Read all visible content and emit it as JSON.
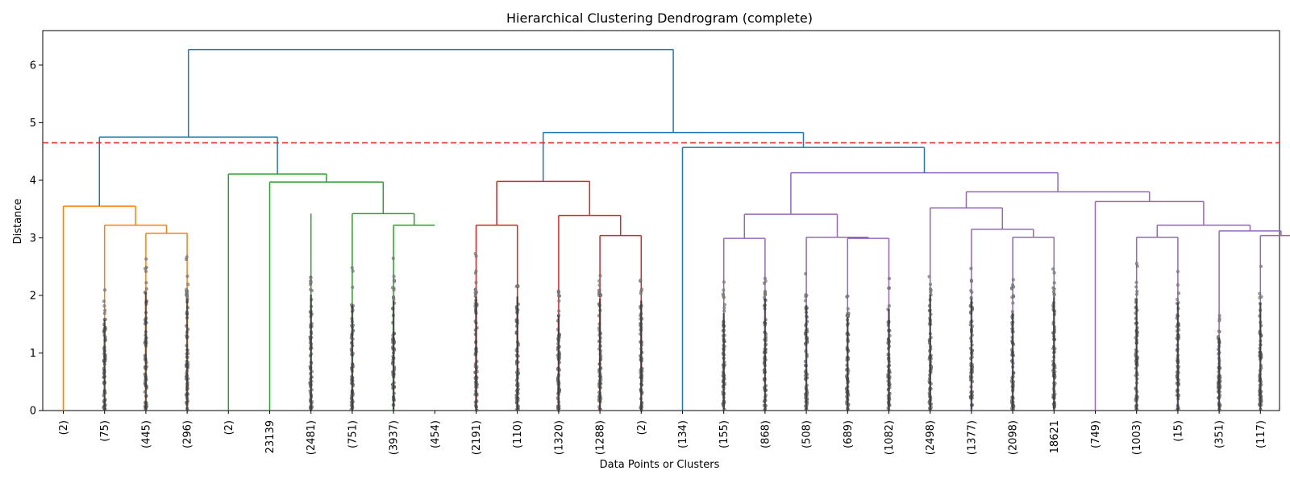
{
  "chart_data": {
    "type": "dendrogram",
    "title": "Hierarchical Clustering Dendrogram (complete)",
    "xlabel": "Data Points or Clusters",
    "ylabel": "Distance",
    "ylim": [
      0,
      6.6
    ],
    "yticks": [
      0,
      1,
      2,
      3,
      4,
      5,
      6
    ],
    "leaf_labels": [
      "(2)",
      "(75)",
      "(445)",
      "(296)",
      "(2)",
      "23139",
      "(2481)",
      "(751)",
      "(3937)",
      "(454)",
      "(2191)",
      "(110)",
      "(1320)",
      "(1288)",
      "(2)",
      "(134)",
      "(155)",
      "(868)",
      "(508)",
      "(689)",
      "(1082)",
      "(2498)",
      "(1377)",
      "(2098)",
      "18621",
      "(749)",
      "(1003)",
      "(15)",
      "(351)",
      "(117)"
    ],
    "cut_threshold": 4.65,
    "colors": {
      "orange": "#ff7f0e",
      "green": "#2ca02c",
      "red": "#d62728",
      "purple": "#9467bd",
      "blue": "#1f77b4",
      "threshold": "#e8261b"
    },
    "merges": [
      {
        "left": 1,
        "right": 2,
        "lx": 4.0,
        "rx": 6.0,
        "height": 3.08,
        "color": "orange"
      },
      {
        "left": 0,
        "right": 2,
        "lx": 2.0,
        "rx": 5.0,
        "height": 3.22,
        "color": "orange"
      },
      {
        "left": 0,
        "right": 1,
        "lx": 0.0,
        "rx": 3.5,
        "height": 3.55,
        "color": "orange"
      },
      {
        "left": 0,
        "right": 2,
        "lx": 16.0,
        "rx": 18.0,
        "height": 3.22,
        "color": "green"
      },
      {
        "left": 0,
        "right": 2,
        "lx": 14.0,
        "rx": 17.0,
        "height": 3.42,
        "color": "green"
      },
      {
        "left": 0,
        "right": 2,
        "lx": 10.0,
        "rx": 15.5,
        "height": 3.97,
        "color": "green"
      },
      {
        "left": 0,
        "right": 2,
        "lx": 8.0,
        "rx": 12.75,
        "height": 4.11,
        "color": "green"
      },
      {
        "left": 0,
        "right": 2,
        "lx": 20.0,
        "rx": 22.0,
        "height": 3.22,
        "color": "red"
      },
      {
        "left": 0,
        "right": 2,
        "lx": 26.0,
        "rx": 28.0,
        "height": 3.04,
        "color": "red"
      },
      {
        "left": 0,
        "right": 2,
        "lx": 24.0,
        "rx": 27.0,
        "height": 3.39,
        "color": "red"
      },
      {
        "left": 0,
        "right": 2,
        "lx": 21.0,
        "rx": 25.5,
        "height": 3.98,
        "color": "red"
      },
      {
        "left": 0,
        "right": 2,
        "lx": 32.0,
        "rx": 34.0,
        "height": 2.99,
        "color": "purple"
      },
      {
        "left": 0,
        "right": 2,
        "lx": 38.0,
        "rx": 40.0,
        "height": 2.99,
        "color": "purple"
      },
      {
        "left": 0,
        "right": 2,
        "lx": 36.0,
        "rx": 39.0,
        "height": 3.01,
        "color": "purple"
      },
      {
        "left": 0,
        "right": 2,
        "lx": 33.0,
        "rx": 37.5,
        "height": 3.41,
        "color": "purple"
      },
      {
        "left": 0,
        "right": 2,
        "lx": 46.0,
        "rx": 48.0,
        "height": 3.01,
        "color": "purple"
      },
      {
        "left": 0,
        "right": 2,
        "lx": 44.0,
        "rx": 47.0,
        "height": 3.15,
        "color": "purple"
      },
      {
        "left": 0,
        "right": 2,
        "lx": 42.0,
        "rx": 45.5,
        "height": 3.52,
        "color": "purple"
      },
      {
        "left": 0,
        "right": 2,
        "lx": 52.0,
        "rx": 54.0,
        "height": 3.01,
        "color": "purple"
      },
      {
        "left": 0,
        "right": 2,
        "lx": 58.0,
        "rx": 60.0,
        "height": 3.04,
        "color": "purple"
      },
      {
        "left": 0,
        "right": 2,
        "lx": 56.0,
        "rx": 59.0,
        "height": 3.12,
        "color": "purple"
      },
      {
        "left": 0,
        "right": 2,
        "lx": 53.0,
        "rx": 57.5,
        "height": 3.22,
        "color": "purple"
      },
      {
        "left": 0,
        "right": 2,
        "lx": 50.0,
        "rx": 55.25,
        "height": 3.63,
        "color": "purple"
      },
      {
        "left": 0,
        "right": 2,
        "lx": 43.75,
        "rx": 52.625,
        "height": 3.8,
        "color": "purple"
      },
      {
        "left": 0,
        "right": 2,
        "lx": 35.25,
        "rx": 48.1875,
        "height": 4.13,
        "color": "purple"
      },
      {
        "left": 0,
        "right": 2,
        "lx": 30.0,
        "rx": 41.71875,
        "height": 4.57,
        "color": "blue"
      },
      {
        "left": 0,
        "right": 2,
        "lx": 23.25,
        "rx": 35.859375,
        "height": 4.83,
        "color": "blue"
      },
      {
        "left": 0,
        "right": 2,
        "lx": 1.75,
        "rx": 10.375,
        "height": 4.75,
        "color": "blue"
      },
      {
        "left": 0,
        "right": 2,
        "lx": 6.0625,
        "rx": 29.5546875,
        "height": 6.27,
        "color": "blue"
      }
    ],
    "leaf_stems": [
      {
        "x": 0.0,
        "height": 3.55,
        "color": "orange",
        "dots": false
      },
      {
        "x": 2.0,
        "height": 3.22,
        "color": "orange",
        "dots": true,
        "dmax": 2.2
      },
      {
        "x": 4.0,
        "height": 3.08,
        "color": "orange",
        "dots": true,
        "dmax": 2.85
      },
      {
        "x": 6.0,
        "height": 3.08,
        "color": "orange",
        "dots": true,
        "dmax": 2.7
      },
      {
        "x": 8.0,
        "height": 4.11,
        "color": "green",
        "dots": false
      },
      {
        "x": 10.0,
        "height": 3.97,
        "color": "green",
        "dots": false
      },
      {
        "x": 12.0,
        "height": 3.42,
        "color": "green",
        "dots": true,
        "dmax": 2.8
      },
      {
        "x": 14.0,
        "height": 3.22,
        "color": "green",
        "dots": true,
        "dmax": 2.55
      },
      {
        "x": 16.0,
        "height": 3.22,
        "color": "green",
        "dots": true,
        "dmax": 2.65
      },
      {
        "x": 20.0,
        "height": 3.22,
        "color": "red",
        "dots": true,
        "dmax": 2.75
      },
      {
        "x": 22.0,
        "height": 3.22,
        "color": "red",
        "dots": true,
        "dmax": 2.75
      },
      {
        "x": 24.0,
        "height": 3.39,
        "color": "red",
        "dots": true,
        "dmax": 2.3
      },
      {
        "x": 26.0,
        "height": 3.04,
        "color": "red",
        "dots": true,
        "dmax": 2.7
      },
      {
        "x": 28.0,
        "height": 3.04,
        "color": "red",
        "dots": true,
        "dmax": 2.65
      },
      {
        "x": 30.0,
        "height": 4.57,
        "color": "blue",
        "dots": false
      },
      {
        "x": 32.0,
        "height": 2.99,
        "color": "purple",
        "dots": true,
        "dmax": 2.35
      },
      {
        "x": 34.0,
        "height": 2.99,
        "color": "purple",
        "dots": true,
        "dmax": 2.7
      },
      {
        "x": 36.0,
        "height": 3.01,
        "color": "purple",
        "dots": true,
        "dmax": 2.55
      },
      {
        "x": 38.0,
        "height": 2.99,
        "color": "purple",
        "dots": true,
        "dmax": 2.25
      },
      {
        "x": 40.0,
        "height": 2.99,
        "color": "purple",
        "dots": true,
        "dmax": 2.45
      },
      {
        "x": 42.0,
        "height": 3.52,
        "color": "purple",
        "dots": true,
        "dmax": 2.8
      },
      {
        "x": 44.0,
        "height": 3.15,
        "color": "purple",
        "dots": true,
        "dmax": 2.7
      },
      {
        "x": 46.0,
        "height": 3.01,
        "color": "purple",
        "dots": true,
        "dmax": 2.35
      },
      {
        "x": 48.0,
        "height": 3.01,
        "color": "purple",
        "dots": true,
        "dmax": 2.75
      },
      {
        "x": 50.0,
        "height": 3.63,
        "color": "purple",
        "dots": false
      },
      {
        "x": 52.0,
        "height": 3.01,
        "color": "purple",
        "dots": true,
        "dmax": 2.7
      },
      {
        "x": 54.0,
        "height": 3.01,
        "color": "purple",
        "dots": true,
        "dmax": 2.6
      },
      {
        "x": 56.0,
        "height": 3.12,
        "color": "purple",
        "dots": true,
        "dmax": 1.75
      },
      {
        "x": 58.0,
        "height": 3.04,
        "color": "purple",
        "dots": true,
        "dmax": 2.6
      },
      {
        "x": 60.0,
        "height": 3.04,
        "color": "purple",
        "dots": true,
        "dmax": 2.55
      }
    ]
  }
}
